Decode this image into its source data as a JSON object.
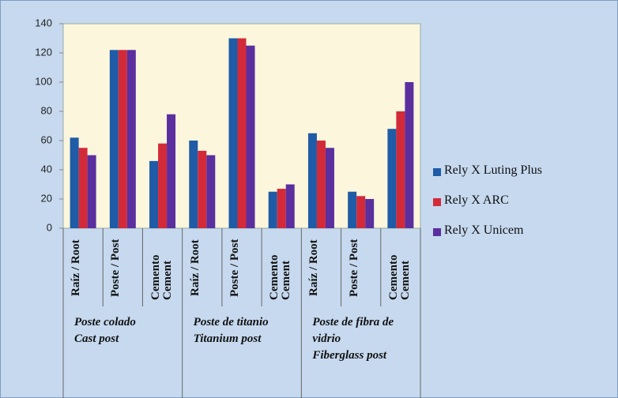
{
  "chart_data": {
    "type": "bar",
    "categories": [
      "Raíz / Root",
      "Poste / Post",
      "Cemento Cement",
      "Raíz / Root",
      "Poste / Post",
      "Cemento Cement",
      "Raíz / Root",
      "Poste / Post",
      "Cemento Cement"
    ],
    "groups": [
      {
        "label": "Poste colado",
        "sublabel": "Cast post",
        "size": 3
      },
      {
        "label": "Poste de titanio",
        "sublabel": "Titanium post",
        "size": 3
      },
      {
        "label": "Poste de fibra de vidrio",
        "sublabel": "Fiberglass post",
        "size": 3
      }
    ],
    "series": [
      {
        "name": "Rely X Luting Plus",
        "color": "#1f5ba6",
        "values": [
          62,
          122,
          46,
          60,
          130,
          25,
          65,
          25,
          68
        ]
      },
      {
        "name": "Rely X ARC",
        "color": "#d32a3a",
        "values": [
          55,
          122,
          58,
          53,
          130,
          27,
          60,
          22,
          80
        ]
      },
      {
        "name": "Rely X Unicem",
        "color": "#5b2f9e",
        "values": [
          50,
          122,
          78,
          50,
          125,
          30,
          55,
          20,
          100
        ]
      }
    ],
    "ylim": [
      0,
      140
    ],
    "yticks": [
      0,
      20,
      40,
      60,
      80,
      100,
      120,
      140
    ],
    "grid": false,
    "legend": "right"
  }
}
